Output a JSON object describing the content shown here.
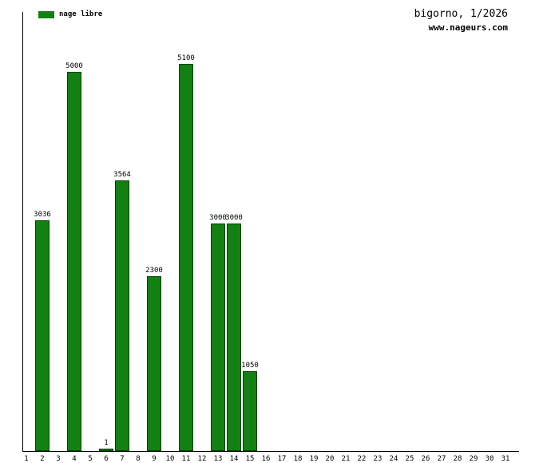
{
  "chart_data": {
    "type": "bar",
    "title": "bigorno, 1/2026",
    "watermark": "www.nageurs.com",
    "legend": [
      {
        "label": "nage libre",
        "color": "#148014"
      }
    ],
    "bar_color": "#148014",
    "categories": [
      1,
      2,
      3,
      4,
      5,
      6,
      7,
      8,
      9,
      10,
      11,
      12,
      13,
      14,
      15,
      16,
      17,
      18,
      19,
      20,
      21,
      22,
      23,
      24,
      25,
      26,
      27,
      28,
      29,
      30,
      31
    ],
    "values": [
      0,
      3036,
      0,
      5000,
      0,
      1,
      3564,
      0,
      2300,
      0,
      5100,
      0,
      3000,
      3000,
      1050,
      0,
      0,
      0,
      0,
      0,
      0,
      0,
      0,
      0,
      0,
      0,
      0,
      0,
      0,
      0,
      0
    ],
    "xlabel": "",
    "ylabel": "",
    "ylim": [
      0,
      5350
    ],
    "grid": false,
    "legend_position": "top-left",
    "value_labels_shown": true
  }
}
